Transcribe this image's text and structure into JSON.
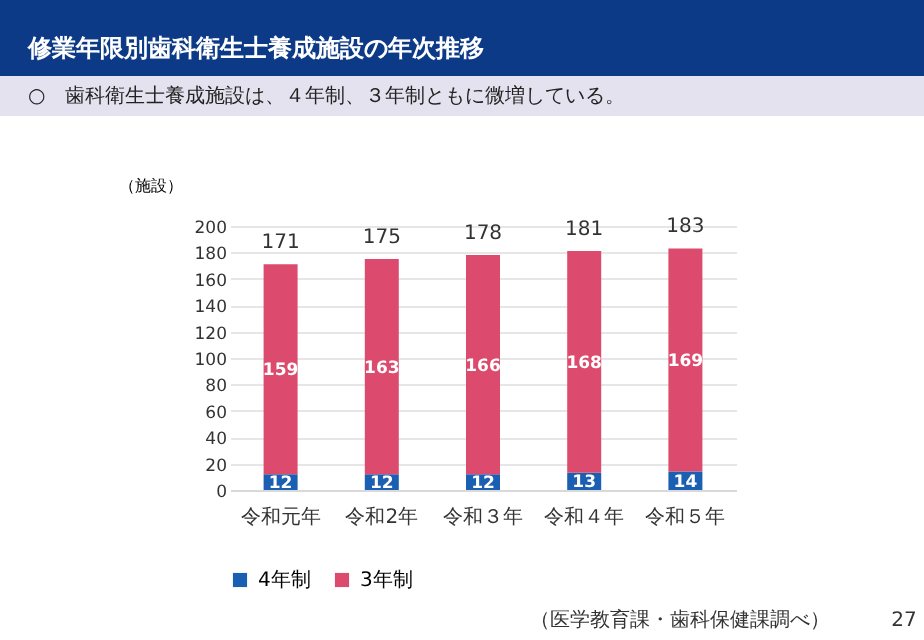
{
  "chart_data": {
    "type": "bar",
    "title": "修業年限別歯科衛生士養成施設の年次推移",
    "subtitle": "○　歯科衛生士養成施設は、４年制、３年制ともに微増している。",
    "ylabel": "（施設）",
    "categories": [
      "令和元年",
      "令和2年",
      "令和３年",
      "令和４年",
      "令和５年"
    ],
    "series": [
      {
        "name": "4年制",
        "color": "#1b5fb2",
        "values": [
          12,
          12,
          12,
          13,
          14
        ]
      },
      {
        "name": "3年制",
        "color": "#dc4b6d",
        "values": [
          159,
          163,
          166,
          168,
          169
        ]
      }
    ],
    "stacked": true,
    "data_labels": true,
    "totals": [
      "171",
      "175",
      "178",
      "181",
      "183"
    ],
    "ylim": [
      0,
      200
    ],
    "yticks": [
      0,
      20,
      40,
      60,
      80,
      100,
      120,
      140,
      160,
      180,
      200
    ],
    "grid": "y",
    "legend": "bottom",
    "annotations": [
      "（医学教育課・歯科保健課調べ）",
      "27"
    ]
  }
}
